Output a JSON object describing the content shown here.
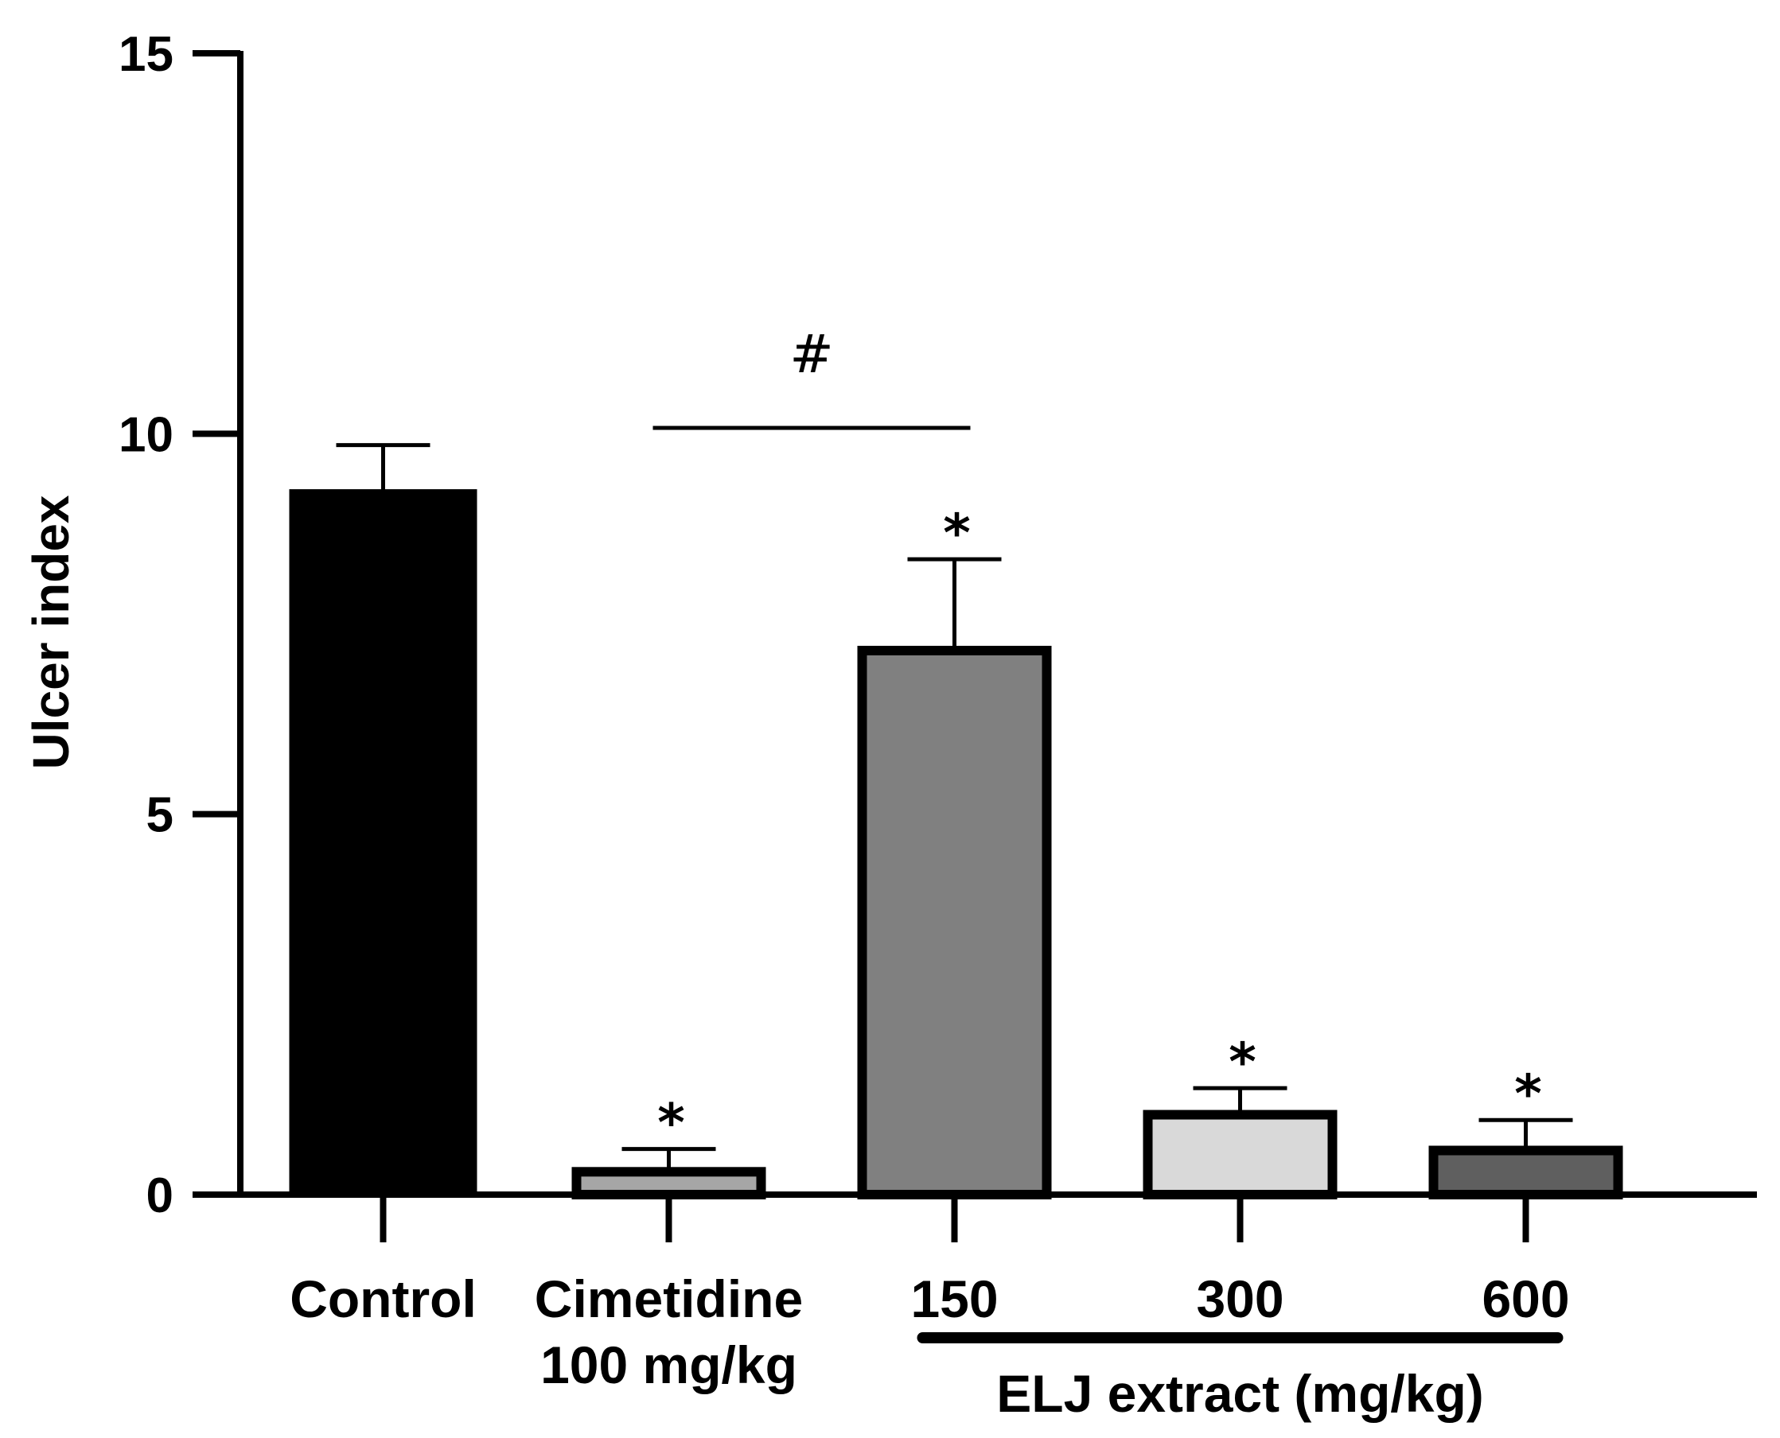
{
  "chart_data": {
    "type": "bar",
    "title": "",
    "xlabel": "",
    "ylabel": "Ulcer index",
    "ylim": [
      0,
      15
    ],
    "yticks": [
      "0",
      "5",
      "10",
      "15"
    ],
    "categories": [
      {
        "label": "Control",
        "sublabel": ""
      },
      {
        "label": "Cimetidine",
        "sublabel": "100 mg/kg"
      },
      {
        "label": "150",
        "sublabel": ""
      },
      {
        "label": "300",
        "sublabel": ""
      },
      {
        "label": "600",
        "sublabel": ""
      }
    ],
    "values": [
      9.25,
      0.3,
      7.15,
      1.05,
      0.58
    ],
    "errors": [
      0.6,
      0.3,
      1.2,
      0.35,
      0.4
    ],
    "fills": [
      "#000000",
      "#a6a6a6",
      "#808080",
      "#d9d9d9",
      "#5f5f5f"
    ],
    "significance": [
      "",
      "*",
      "*",
      "*",
      "*"
    ],
    "group_label": "ELJ extract (mg/kg)",
    "group_bracket": {
      "from_category": 2,
      "to_category": 4
    },
    "comparison": {
      "symbol": "#",
      "from_category": 1,
      "to_category": 2
    }
  }
}
